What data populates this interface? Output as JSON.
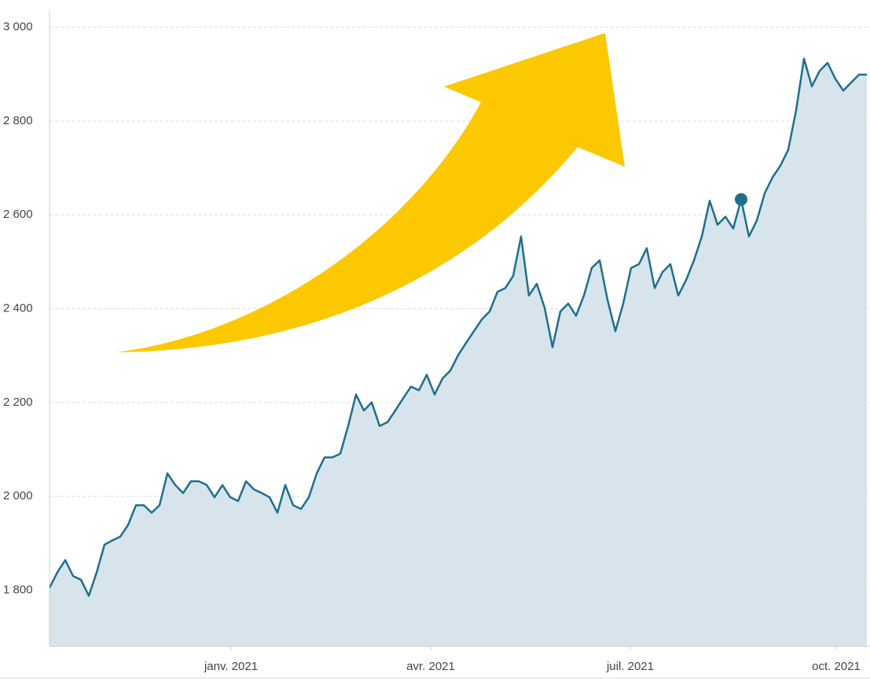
{
  "chart_data": {
    "type": "area",
    "values": [
      1805,
      1838,
      1864,
      1830,
      1822,
      1788,
      1838,
      1897,
      1906,
      1914,
      1939,
      1981,
      1981,
      1965,
      1981,
      2049,
      2024,
      2007,
      2032,
      2032,
      2024,
      1998,
      2024,
      1998,
      1990,
      2032,
      2015,
      2007,
      1998,
      1965,
      2024,
      1981,
      1973,
      1998,
      2049,
      2083,
      2083,
      2091,
      2150,
      2217,
      2183,
      2200,
      2150,
      2158,
      2183,
      2209,
      2234,
      2226,
      2259,
      2217,
      2251,
      2268,
      2301,
      2327,
      2352,
      2377,
      2394,
      2436,
      2444,
      2470,
      2554,
      2428,
      2453,
      2402,
      2318,
      2394,
      2411,
      2385,
      2428,
      2487,
      2503,
      2419,
      2352,
      2411,
      2487,
      2495,
      2529,
      2444,
      2478,
      2495,
      2428,
      2461,
      2503,
      2554,
      2630,
      2579,
      2596,
      2571,
      2633,
      2554,
      2588,
      2646,
      2680,
      2705,
      2739,
      2823,
      2933,
      2874,
      2907,
      2924,
      2890,
      2865,
      2882,
      2899,
      2899
    ],
    "color": "#1f6f8b",
    "fill_color": "#d7e4ec",
    "marker_index": 88,
    "xlim": [
      0,
      104.4
    ],
    "xticks": [
      {
        "value": 23.1,
        "label": "janv. 2021"
      },
      {
        "value": 48.5,
        "label": "avr. 2021"
      },
      {
        "value": 73.9,
        "label": "juil. 2021"
      },
      {
        "value": 100.1,
        "label": "oct. 2021"
      }
    ],
    "ylim": [
      1680,
      3038
    ],
    "yticks": [
      {
        "value": 1800,
        "label": "1 800"
      },
      {
        "value": 2000,
        "label": "2 000"
      },
      {
        "value": 2200,
        "label": "2 200"
      },
      {
        "value": 2400,
        "label": "2 400"
      },
      {
        "value": 2600,
        "label": "2 600"
      },
      {
        "value": 2800,
        "label": "2 800"
      },
      {
        "value": 3000,
        "label": "3 000"
      }
    ],
    "grid": true
  }
}
